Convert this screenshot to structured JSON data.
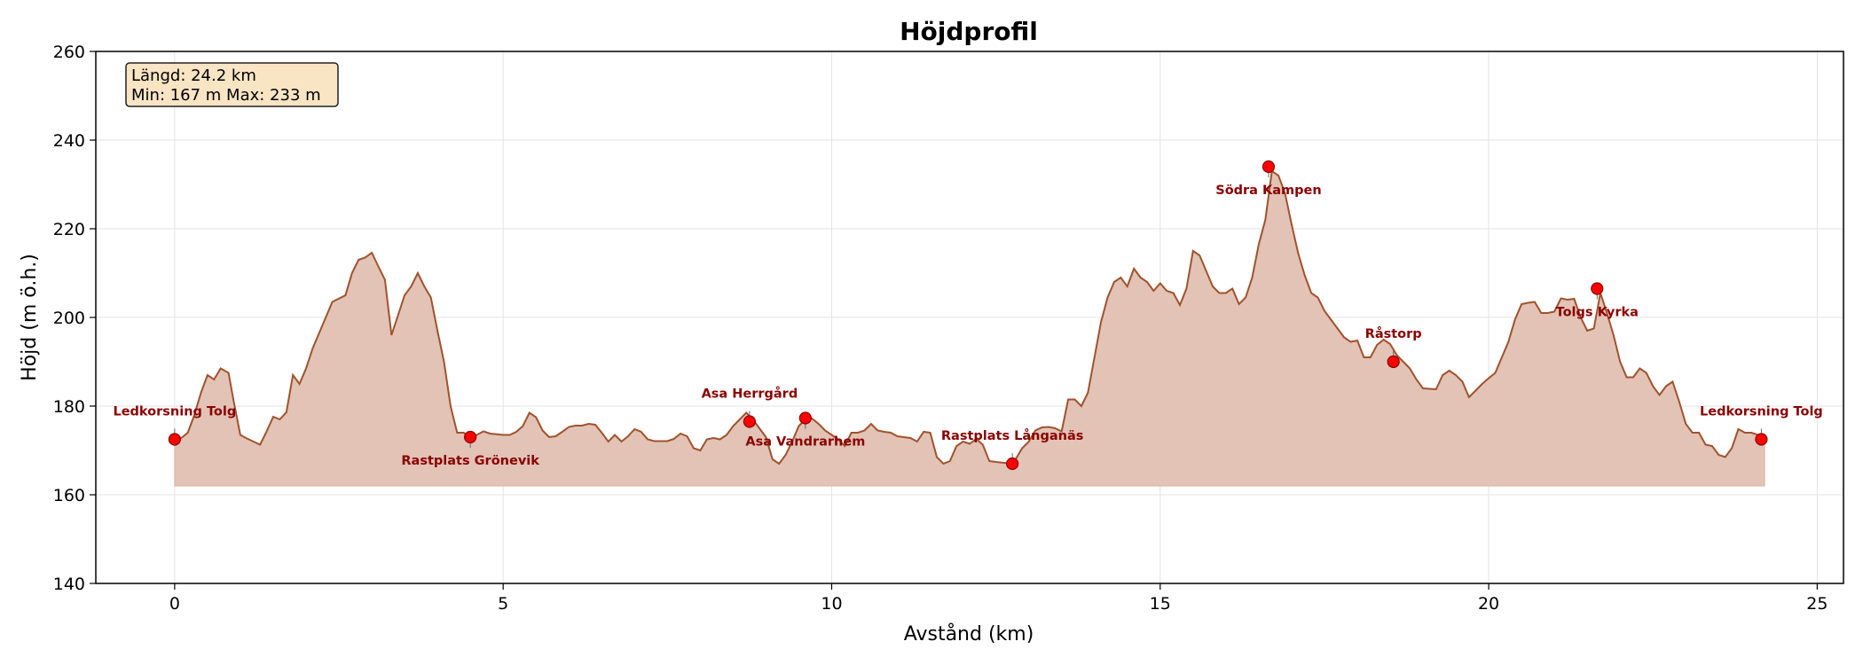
{
  "chart_data": {
    "type": "area",
    "title": "Höjdprofil",
    "xlabel": "Avstånd (km)",
    "ylabel": "Höjd (m ö.h.)",
    "xlim": [
      -1.2,
      25.4
    ],
    "ylim": [
      140,
      260
    ],
    "xticks": [
      0,
      5,
      10,
      15,
      20,
      25
    ],
    "yticks": [
      140,
      160,
      180,
      200,
      220,
      240,
      260
    ],
    "grid": true,
    "baseline": 162,
    "colors": {
      "line": "#a0522d",
      "fill": "#e2c3b6",
      "marker": "#ff0000",
      "label": "#8b0000",
      "box_fill": "#f9e4c4"
    },
    "info_box": {
      "line1": "Längd: 24.2 km",
      "line2": "Min: 167 m  Max: 233 m",
      "placement": "top-left"
    },
    "profile": [
      [
        0,
        172.5
      ],
      [
        0.1,
        172.8
      ],
      [
        0.2,
        174
      ],
      [
        0.3,
        178
      ],
      [
        0.4,
        183
      ],
      [
        0.5,
        187
      ],
      [
        0.6,
        186
      ],
      [
        0.7,
        188.5
      ],
      [
        0.82,
        187.5
      ],
      [
        0.9,
        181
      ],
      [
        1.0,
        173.5
      ],
      [
        1.1,
        172.7
      ],
      [
        1.2,
        172
      ],
      [
        1.3,
        171.3
      ],
      [
        1.4,
        174.3
      ],
      [
        1.5,
        177.6
      ],
      [
        1.6,
        177
      ],
      [
        1.7,
        178.6
      ],
      [
        1.8,
        187
      ],
      [
        1.9,
        185
      ],
      [
        2.0,
        188.5
      ],
      [
        2.1,
        193
      ],
      [
        2.2,
        196.5
      ],
      [
        2.3,
        200
      ],
      [
        2.4,
        203.5
      ],
      [
        2.6,
        205
      ],
      [
        2.7,
        210
      ],
      [
        2.8,
        213
      ],
      [
        2.9,
        213.5
      ],
      [
        3.0,
        214.6
      ],
      [
        3.1,
        211.5
      ],
      [
        3.2,
        208.5
      ],
      [
        3.3,
        196
      ],
      [
        3.4,
        200.5
      ],
      [
        3.5,
        205
      ],
      [
        3.6,
        207
      ],
      [
        3.7,
        210
      ],
      [
        3.8,
        207
      ],
      [
        3.9,
        204.5
      ],
      [
        4.0,
        197
      ],
      [
        4.1,
        190
      ],
      [
        4.2,
        180
      ],
      [
        4.3,
        174
      ],
      [
        4.4,
        174
      ],
      [
        4.5,
        173
      ],
      [
        4.6,
        173.5
      ],
      [
        4.7,
        174.3
      ],
      [
        4.8,
        173.8
      ],
      [
        5.0,
        173.5
      ],
      [
        5.1,
        173.5
      ],
      [
        5.2,
        174.2
      ],
      [
        5.3,
        175.5
      ],
      [
        5.4,
        178.5
      ],
      [
        5.5,
        177.5
      ],
      [
        5.6,
        174.5
      ],
      [
        5.7,
        173
      ],
      [
        5.8,
        173.2
      ],
      [
        5.9,
        174.2
      ],
      [
        6.0,
        175.3
      ],
      [
        6.1,
        175.6
      ],
      [
        6.2,
        175.6
      ],
      [
        6.3,
        176
      ],
      [
        6.4,
        175.8
      ],
      [
        6.5,
        174
      ],
      [
        6.6,
        172
      ],
      [
        6.7,
        173.5
      ],
      [
        6.8,
        172
      ],
      [
        6.9,
        173.2
      ],
      [
        7.0,
        174.8
      ],
      [
        7.1,
        174.2
      ],
      [
        7.2,
        172.5
      ],
      [
        7.3,
        172.1
      ],
      [
        7.5,
        172.1
      ],
      [
        7.6,
        172.6
      ],
      [
        7.7,
        173.8
      ],
      [
        7.8,
        173.2
      ],
      [
        7.9,
        170.5
      ],
      [
        8.0,
        170
      ],
      [
        8.1,
        172.5
      ],
      [
        8.2,
        172.8
      ],
      [
        8.3,
        172.5
      ],
      [
        8.4,
        173.5
      ],
      [
        8.5,
        175.5
      ],
      [
        8.6,
        177
      ],
      [
        8.7,
        178.5
      ],
      [
        8.8,
        177
      ],
      [
        8.9,
        175
      ],
      [
        9.0,
        173
      ],
      [
        9.1,
        168
      ],
      [
        9.2,
        167
      ],
      [
        9.3,
        169
      ],
      [
        9.4,
        172
      ],
      [
        9.5,
        175.5
      ],
      [
        9.6,
        177
      ],
      [
        9.7,
        177.2
      ],
      [
        9.8,
        176
      ],
      [
        9.9,
        174.5
      ],
      [
        10.0,
        173.5
      ],
      [
        10.1,
        172.5
      ],
      [
        10.2,
        171
      ],
      [
        10.3,
        174
      ],
      [
        10.4,
        174
      ],
      [
        10.5,
        174.5
      ],
      [
        10.6,
        176
      ],
      [
        10.7,
        174.5
      ],
      [
        10.8,
        174.2
      ],
      [
        10.9,
        174
      ],
      [
        11.0,
        173.2
      ],
      [
        11.2,
        172.8
      ],
      [
        11.3,
        172
      ],
      [
        11.4,
        174.2
      ],
      [
        11.5,
        174
      ],
      [
        11.6,
        168.5
      ],
      [
        11.7,
        167
      ],
      [
        11.8,
        167.6
      ],
      [
        11.9,
        171
      ],
      [
        12.0,
        172
      ],
      [
        12.1,
        171.5
      ],
      [
        12.2,
        172.6
      ],
      [
        12.3,
        171.3
      ],
      [
        12.4,
        167.6
      ],
      [
        12.5,
        167.4
      ],
      [
        12.75,
        167
      ],
      [
        12.8,
        168
      ],
      [
        12.9,
        170.5
      ],
      [
        13.0,
        172
      ],
      [
        13.1,
        174.5
      ],
      [
        13.2,
        175.2
      ],
      [
        13.3,
        175.3
      ],
      [
        13.4,
        175
      ],
      [
        13.5,
        174.3
      ],
      [
        13.6,
        181.5
      ],
      [
        13.7,
        181.5
      ],
      [
        13.8,
        180
      ],
      [
        13.9,
        183
      ],
      [
        14.0,
        191
      ],
      [
        14.1,
        199
      ],
      [
        14.2,
        204.5
      ],
      [
        14.3,
        208
      ],
      [
        14.4,
        209
      ],
      [
        14.5,
        207
      ],
      [
        14.6,
        211
      ],
      [
        14.7,
        209
      ],
      [
        14.8,
        208
      ],
      [
        14.9,
        206
      ],
      [
        15.0,
        207.7
      ],
      [
        15.1,
        206
      ],
      [
        15.2,
        205.5
      ],
      [
        15.3,
        202.8
      ],
      [
        15.4,
        206.5
      ],
      [
        15.5,
        215
      ],
      [
        15.6,
        214
      ],
      [
        15.7,
        210.5
      ],
      [
        15.8,
        207
      ],
      [
        15.9,
        205.5
      ],
      [
        16.0,
        205.5
      ],
      [
        16.1,
        206.5
      ],
      [
        16.2,
        203
      ],
      [
        16.3,
        204.5
      ],
      [
        16.4,
        209
      ],
      [
        16.5,
        216.5
      ],
      [
        16.6,
        222
      ],
      [
        16.7,
        233
      ],
      [
        16.8,
        232
      ],
      [
        16.9,
        228
      ],
      [
        17.0,
        221
      ],
      [
        17.1,
        214.5
      ],
      [
        17.2,
        209.5
      ],
      [
        17.3,
        205.5
      ],
      [
        17.4,
        204.5
      ],
      [
        17.5,
        201.5
      ],
      [
        17.6,
        199.5
      ],
      [
        17.7,
        197.5
      ],
      [
        17.8,
        195.5
      ],
      [
        17.9,
        194.5
      ],
      [
        18.0,
        194.8
      ],
      [
        18.1,
        191
      ],
      [
        18.2,
        191
      ],
      [
        18.3,
        193.8
      ],
      [
        18.4,
        195
      ],
      [
        18.5,
        194
      ],
      [
        18.6,
        191.5
      ],
      [
        18.7,
        190
      ],
      [
        18.8,
        188.5
      ],
      [
        18.9,
        186
      ],
      [
        19.0,
        184
      ],
      [
        19.2,
        183.8
      ],
      [
        19.3,
        187
      ],
      [
        19.4,
        188
      ],
      [
        19.5,
        187
      ],
      [
        19.6,
        185.5
      ],
      [
        19.7,
        182
      ],
      [
        19.8,
        183.5
      ],
      [
        19.9,
        185
      ],
      [
        20.0,
        186.3
      ],
      [
        20.1,
        187.5
      ],
      [
        20.2,
        191
      ],
      [
        20.3,
        194.5
      ],
      [
        20.4,
        199.5
      ],
      [
        20.5,
        203
      ],
      [
        20.6,
        203.3
      ],
      [
        20.7,
        203.5
      ],
      [
        20.8,
        201
      ],
      [
        20.9,
        201
      ],
      [
        21.0,
        201.3
      ],
      [
        21.1,
        204.3
      ],
      [
        21.2,
        204
      ],
      [
        21.3,
        204.2
      ],
      [
        21.4,
        200
      ],
      [
        21.5,
        197
      ],
      [
        21.6,
        197.5
      ],
      [
        21.7,
        205.5
      ],
      [
        21.8,
        201
      ],
      [
        21.9,
        196
      ],
      [
        22.0,
        190
      ],
      [
        22.1,
        186.5
      ],
      [
        22.2,
        186.5
      ],
      [
        22.3,
        188.5
      ],
      [
        22.4,
        187.5
      ],
      [
        22.5,
        184.5
      ],
      [
        22.6,
        182.5
      ],
      [
        22.7,
        184.5
      ],
      [
        22.8,
        185.5
      ],
      [
        22.9,
        181
      ],
      [
        23.0,
        176
      ],
      [
        23.1,
        174
      ],
      [
        23.2,
        174
      ],
      [
        23.3,
        171.3
      ],
      [
        23.4,
        171
      ],
      [
        23.5,
        169
      ],
      [
        23.6,
        168.5
      ],
      [
        23.7,
        170.5
      ],
      [
        23.8,
        174.8
      ],
      [
        23.9,
        174
      ],
      [
        24.0,
        174
      ],
      [
        24.1,
        173.5
      ],
      [
        24.2,
        172.5
      ]
    ],
    "waypoints": [
      {
        "name": "Ledkorsning Tolg",
        "x": 0.0,
        "y": 172.5,
        "label_pos": "above"
      },
      {
        "name": "Rastplats Grönevik",
        "x": 4.5,
        "y": 173,
        "label_pos": "below"
      },
      {
        "name": "Asa Herrgård",
        "x": 8.75,
        "y": 176.5,
        "label_pos": "above"
      },
      {
        "name": "Asa Vandrarhem",
        "x": 9.6,
        "y": 177.3,
        "label_pos": "below"
      },
      {
        "name": "Rastplats Långanäs",
        "x": 12.75,
        "y": 167,
        "label_pos": "above"
      },
      {
        "name": "Södra Kampen",
        "x": 16.65,
        "y": 234,
        "label_pos": "below"
      },
      {
        "name": "Råstorp",
        "x": 18.55,
        "y": 190,
        "label_pos": "above"
      },
      {
        "name": "Tolgs Kyrka",
        "x": 21.65,
        "y": 206.5,
        "label_pos": "below"
      },
      {
        "name": "Ledkorsning Tolg",
        "x": 24.15,
        "y": 172.5,
        "label_pos": "above"
      }
    ]
  }
}
